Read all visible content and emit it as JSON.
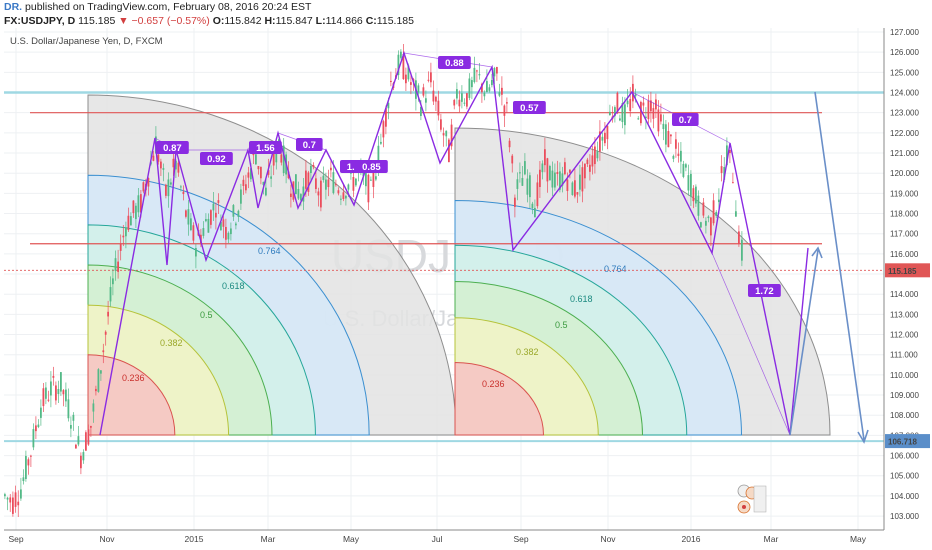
{
  "header": {
    "author": "DR.",
    "published_text": "published on TradingView.com, February 08, 2016 20:24 EST",
    "symbol": "FX:USDJPY, D",
    "last": "115.185",
    "change": "▼ −0.657 (−0.57%)",
    "open_label": "O:",
    "open": "115.842",
    "high_label": "H:",
    "high": "115.847",
    "low_label": "L:",
    "low": "114.866",
    "close_label": "C:",
    "close": "115.185"
  },
  "chart_data": {
    "type": "candlestick",
    "subtitle": "U.S. Dollar/Japanese Yen, D, FXCM",
    "watermark_symbol": "USDJPY, D",
    "watermark_name": "U.S. Dollar/Japanese Yen",
    "x_tick_labels": [
      "Sep",
      "Nov",
      "2015",
      "Mar",
      "May",
      "Jul",
      "Sep",
      "Nov",
      "2016",
      "Mar",
      "May"
    ],
    "y_ticks": [
      "103.000",
      "104.000",
      "105.000",
      "106.000",
      "107.000",
      "108.000",
      "109.000",
      "110.000",
      "111.000",
      "112.000",
      "113.000",
      "114.000",
      "115.000",
      "116.000",
      "117.000",
      "118.000",
      "119.000",
      "120.000",
      "121.000",
      "122.000",
      "123.000",
      "124.000",
      "125.000",
      "126.000",
      "127.000"
    ],
    "ylim": [
      102.6,
      127.4
    ],
    "last_price_label": "115.185",
    "level_price_label": "106.718",
    "colors": {
      "up": "#53b987",
      "down": "#eb4d5c",
      "zigzag": "#8a2be2",
      "arrow": "#6a8fc8",
      "hline_red": "#e05656",
      "hline_cyan": "#9fd8e3",
      "last_price": "#e05656",
      "level_price": "#5a8ec9"
    },
    "horizontal_levels": [
      124.0,
      123.0,
      116.5,
      106.718
    ],
    "fib_levels": [
      "0.236",
      "0.382",
      "0.5",
      "0.618",
      "0.764"
    ],
    "zigzag_ratios": [
      "0.87",
      "0.92",
      "1.56",
      "0.7",
      "1.2",
      "0.85",
      "0.88",
      "0.57",
      "0.7",
      "1.72"
    ]
  }
}
